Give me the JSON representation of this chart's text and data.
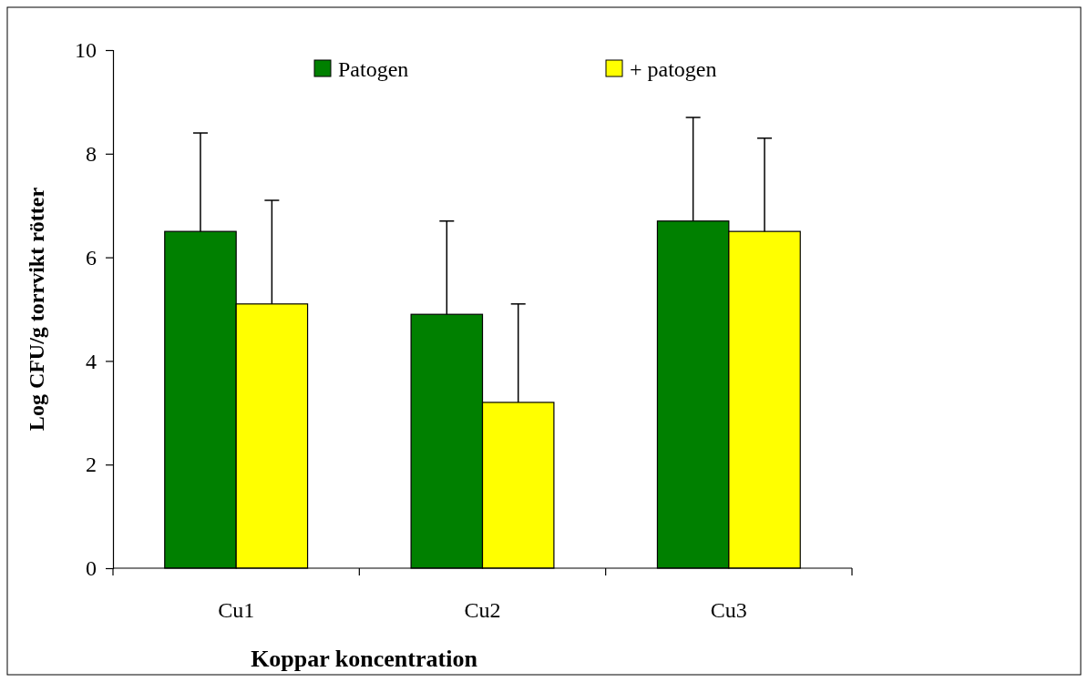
{
  "chart_data": {
    "type": "bar",
    "xlabel": "Koppar koncentration",
    "ylabel": "Log CFU/g torrvikt rötter",
    "categories": [
      "Cu1",
      "Cu2",
      "Cu3"
    ],
    "series": [
      {
        "name": "Patogen",
        "color": "#008000",
        "values": [
          6.5,
          4.9,
          6.7
        ],
        "errors": [
          [
            6.5,
            8.4
          ],
          [
            4.9,
            6.7
          ],
          [
            6.7,
            8.7
          ]
        ]
      },
      {
        "name": "+ patogen",
        "color": "#ffff00",
        "values": [
          5.1,
          3.2,
          6.5
        ],
        "errors": [
          [
            5.1,
            7.1
          ],
          [
            3.2,
            5.1
          ],
          [
            6.5,
            8.3
          ]
        ]
      }
    ],
    "ylim": [
      0,
      10
    ],
    "yticks": [
      0,
      2,
      4,
      6,
      8,
      10
    ],
    "grid": false,
    "legend": "top"
  }
}
